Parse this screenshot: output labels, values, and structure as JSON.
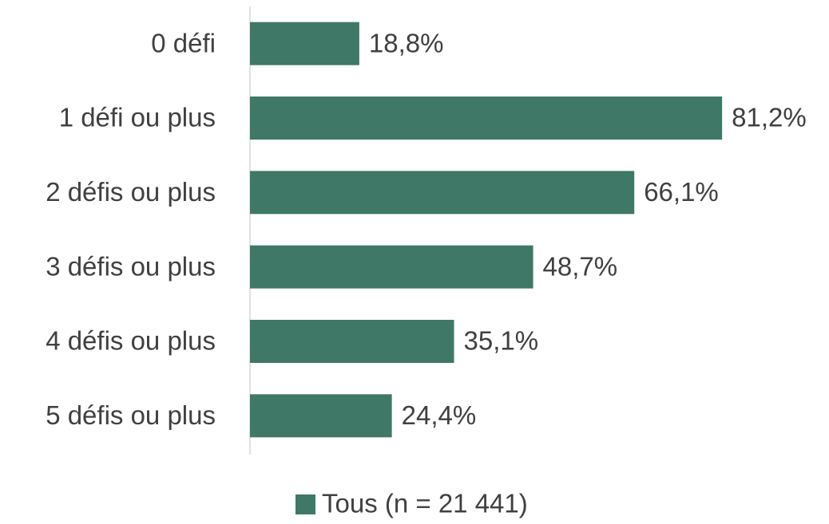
{
  "chart_data": {
    "type": "bar",
    "orientation": "horizontal",
    "categories": [
      "0 défi",
      "1 défi ou plus",
      "2 défis ou plus",
      "3 défis ou plus",
      "4 défis ou plus",
      "5 défis ou plus"
    ],
    "series": [
      {
        "name": "Tous (n = 21 441)",
        "color": "#3f7866",
        "values": [
          18.8,
          81.2,
          66.1,
          48.7,
          35.1,
          24.4
        ],
        "value_labels": [
          "18,8%",
          "81,2%",
          "66,1%",
          "48,7%",
          "35,1%",
          "24,4%"
        ]
      }
    ],
    "xlim": [
      0,
      100
    ],
    "legend": "bottom"
  }
}
